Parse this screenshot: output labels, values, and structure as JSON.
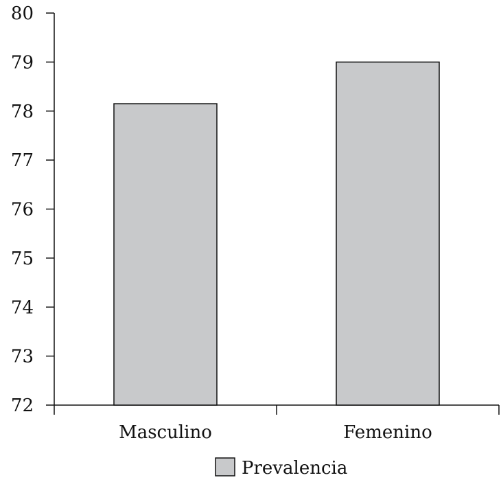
{
  "chart_data": {
    "type": "bar",
    "categories": [
      "Masculino",
      "Femenino"
    ],
    "series": [
      {
        "name": "Prevalencia",
        "values": [
          78.15,
          79.0
        ]
      }
    ],
    "ylim": [
      72,
      80
    ],
    "yticks": [
      "72",
      "73",
      "74",
      "75",
      "76",
      "77",
      "78",
      "79",
      "80"
    ],
    "grid": false,
    "legend_position": "bottom-center",
    "colors": {
      "bar_fill": "#c8c9cb",
      "bar_stroke": "#111111",
      "axis": "#111111"
    }
  }
}
